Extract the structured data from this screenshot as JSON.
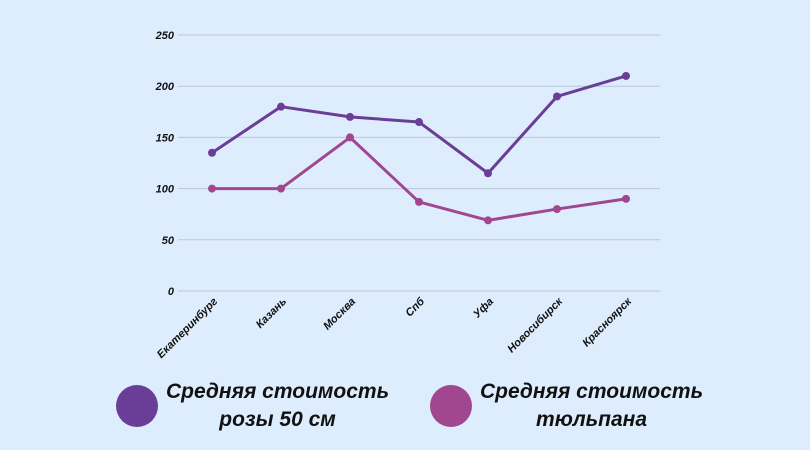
{
  "chart_data": {
    "type": "line",
    "categories": [
      "Екатеринбург",
      "Казань",
      "Москва",
      "Спб",
      "Уфа",
      "Новосибирск",
      "Красноярск"
    ],
    "ylim": [
      0,
      250
    ],
    "yticks": [
      "250",
      "200",
      "150",
      "100",
      "50",
      "0"
    ],
    "grid": true,
    "legend_position": "bottom",
    "series": [
      {
        "name": "Средняя стоимость\nрозы 50 см",
        "color": "#6a3d96",
        "values": [
          135,
          180,
          170,
          165,
          115,
          190,
          210
        ]
      },
      {
        "name": "Средняя стоимость\nтюльпана",
        "color": "#a1478f",
        "values": [
          100,
          100,
          150,
          87,
          69,
          80,
          90
        ]
      }
    ]
  }
}
